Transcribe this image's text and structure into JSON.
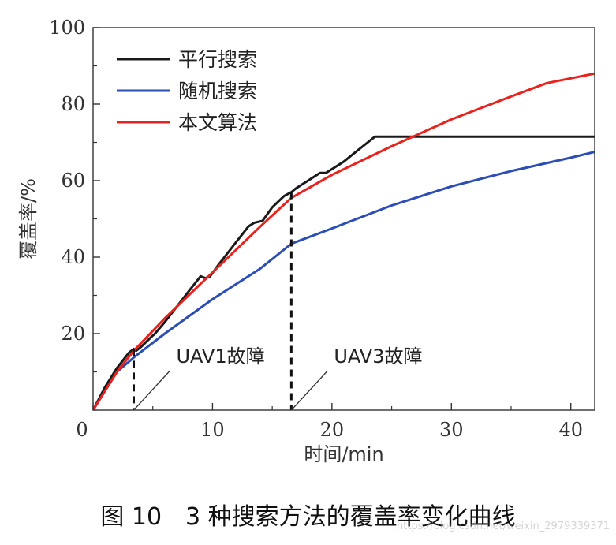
{
  "chart_data": {
    "type": "line",
    "xlabel": "时间/min",
    "ylabel": "覆盖率/%",
    "xlim": [
      0,
      42
    ],
    "ylim": [
      0,
      100
    ],
    "xticks": [
      0,
      10,
      20,
      30,
      40
    ],
    "yticks": [
      20,
      40,
      60,
      80,
      100
    ],
    "x_minor_step": 5,
    "y_minor_step": 10,
    "grid": false,
    "legend_position": "top-left",
    "series": [
      {
        "name": "平行搜索",
        "color": "#1a1a1a",
        "x": [
          0,
          1,
          2,
          3,
          3.4,
          3.6,
          4,
          5,
          5.1,
          6,
          7,
          8,
          9,
          9.4,
          9.8,
          10.5,
          11,
          12,
          13,
          13.5,
          14.2,
          15,
          16,
          16.6,
          17,
          18,
          19,
          19.5,
          20,
          21,
          22,
          23,
          23.6,
          25,
          30,
          35,
          40,
          42
        ],
        "y": [
          0,
          6,
          11,
          15,
          16,
          15.5,
          16.5,
          19.5,
          19.7,
          23,
          27,
          31,
          35,
          34.5,
          35,
          38,
          40,
          44,
          48,
          49,
          49.5,
          53,
          56,
          57,
          58,
          60,
          62,
          62,
          63,
          65,
          67.5,
          70,
          71.5,
          71.5,
          71.5,
          71.5,
          71.5,
          71.5
        ]
      },
      {
        "name": "随机搜索",
        "color": "#2b4db5",
        "x": [
          0,
          2,
          3.5,
          6,
          10,
          14,
          16.6,
          20,
          25,
          30,
          35,
          40,
          42
        ],
        "y": [
          0,
          10,
          14,
          20,
          29,
          37,
          43.5,
          47.5,
          53.5,
          58.5,
          62.5,
          66,
          67.5
        ]
      },
      {
        "name": "本文算法",
        "color": "#e8221c",
        "x": [
          0,
          2,
          3.4,
          6,
          10,
          14,
          16.6,
          20,
          25,
          30,
          35,
          38,
          42
        ],
        "y": [
          0,
          10,
          15.5,
          24,
          36,
          48,
          55.5,
          61.5,
          69,
          76,
          82,
          85.5,
          88
        ]
      }
    ],
    "annotations": [
      {
        "label": "UAV1故障",
        "x": 3.4
      },
      {
        "label": "UAV3故障",
        "x": 16.6
      }
    ],
    "caption": "图 10　3 种搜索方法的覆盖率变化曲线"
  },
  "watermark": "https://blog.csdn.net/weixin_2979339371"
}
